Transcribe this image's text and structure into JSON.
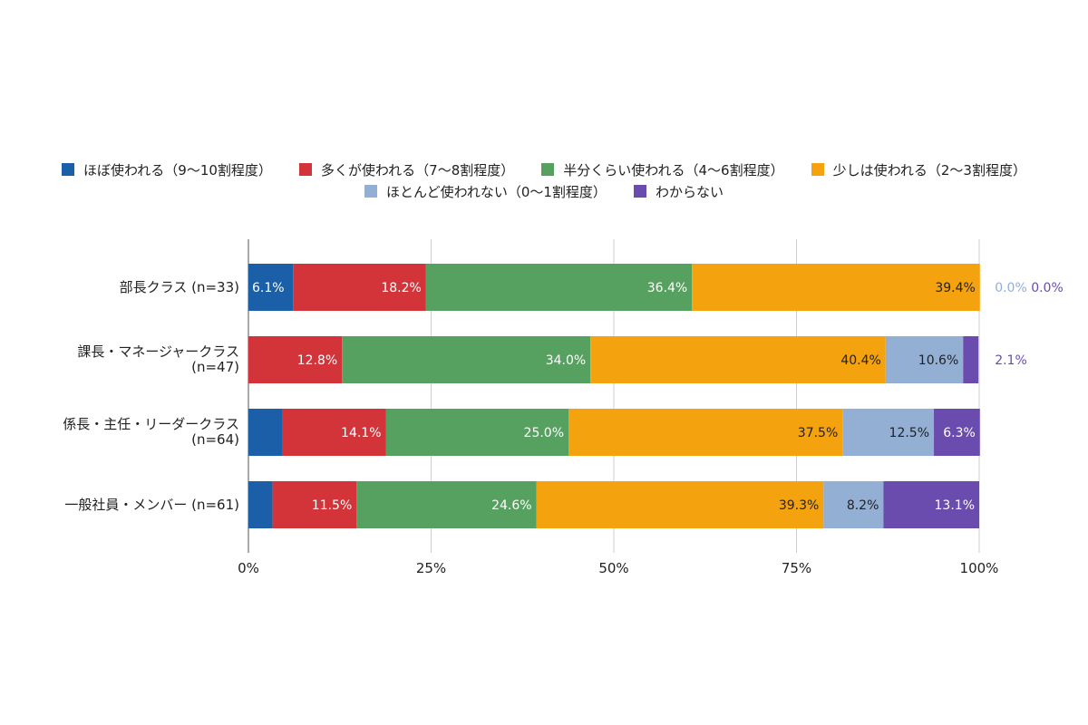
{
  "chart_data": {
    "type": "bar",
    "orientation": "horizontal",
    "stacked": true,
    "categories": [
      [
        "部長クラス (n=33)"
      ],
      [
        "課長・マネージャークラス",
        "(n=47)"
      ],
      [
        "係長・主任・リーダークラス",
        "(n=64)"
      ],
      [
        "一般社員・メンバー (n=61)"
      ]
    ],
    "series": [
      {
        "name": "ほぼ使われる（9〜10割程度）",
        "color": "#1a5fa8",
        "values": [
          6.1,
          0.0,
          4.7,
          3.3
        ],
        "labels": [
          "6.1%",
          "0.0%",
          "4.7%",
          "3.3%"
        ]
      },
      {
        "name": "多くが使われる（7〜8割程度）",
        "color": "#d3343a",
        "values": [
          18.2,
          12.8,
          14.1,
          11.5
        ],
        "labels": [
          "18.2%",
          "12.8%",
          "14.1%",
          "11.5%"
        ]
      },
      {
        "name": "半分くらい使われる（4〜6割程度）",
        "color": "#56a060",
        "values": [
          36.4,
          34.0,
          25.0,
          24.6
        ],
        "labels": [
          "36.4%",
          "34.0%",
          "25.0%",
          "24.6%"
        ]
      },
      {
        "name": "少しは使われる（2〜3割程度）",
        "color": "#f4a20e",
        "values": [
          39.4,
          40.4,
          37.5,
          39.3
        ],
        "labels": [
          "39.4%",
          "40.4%",
          "37.5%",
          "39.3%"
        ]
      },
      {
        "name": "ほとんど使われない（0〜1割程度）",
        "color": "#93afd4",
        "values": [
          0.0,
          10.6,
          12.5,
          8.2
        ],
        "labels": [
          "0.0%",
          "10.6%",
          "12.5%",
          "8.2%"
        ]
      },
      {
        "name": "わからない",
        "color": "#6a4caf",
        "values": [
          0.0,
          2.1,
          6.3,
          13.1
        ],
        "labels": [
          "0.0%",
          "2.1%",
          "6.3%",
          "13.1%"
        ]
      }
    ],
    "x_ticks": [
      "0%",
      "25%",
      "50%",
      "75%",
      "100%"
    ],
    "xlim": [
      0,
      100
    ],
    "grid": true,
    "legend_position": "top"
  }
}
